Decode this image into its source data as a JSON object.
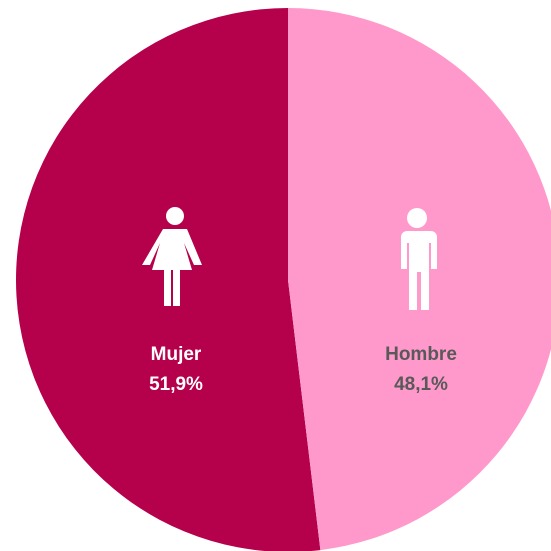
{
  "chart_data": {
    "type": "pie",
    "categories": [
      "Mujer",
      "Hombre"
    ],
    "values": [
      51.9,
      48.1
    ],
    "value_labels": [
      "51,9%",
      "48,1%"
    ],
    "colors": [
      "#b5004b",
      "#ff99cc"
    ],
    "label_colors": [
      "#ffffff",
      "#595959"
    ]
  }
}
